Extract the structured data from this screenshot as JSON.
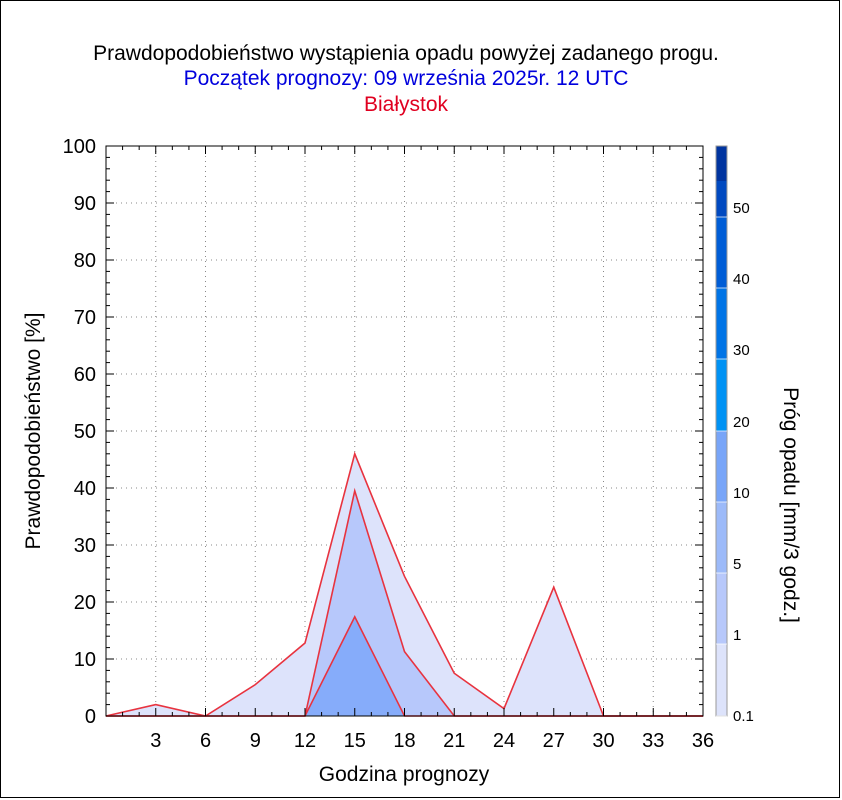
{
  "header": {
    "title": "Prawdopodobieństwo wystąpienia opadu powyżej zadanego progu.",
    "subtitle": "Początek prognozy: 09 września 2025r. 12 UTC",
    "location": "Białystok"
  },
  "chart_data": {
    "type": "area",
    "title": "Prawdopodobieństwo wystąpienia opadu powyżej zadanego progu.",
    "xlabel": "Godzina prognozy",
    "ylabel": "Prawdopodobieństwo [%]",
    "xlim": [
      0,
      36
    ],
    "ylim": [
      0,
      100
    ],
    "x_ticks": [
      3,
      6,
      9,
      12,
      15,
      18,
      21,
      24,
      27,
      30,
      33,
      36
    ],
    "y_ticks": [
      0,
      10,
      20,
      30,
      40,
      50,
      60,
      70,
      80,
      90,
      100
    ],
    "x": [
      0,
      3,
      6,
      9,
      12,
      15,
      18,
      21,
      24,
      27,
      30,
      33,
      36
    ],
    "series": [
      {
        "name": "0.1",
        "color": "#dde3fb",
        "values": [
          0,
          2,
          0,
          5.5,
          12.8,
          46,
          24.5,
          7.5,
          1.3,
          22.6,
          0,
          0,
          0
        ]
      },
      {
        "name": "1",
        "color": "#b7c8fb",
        "values": [
          0,
          0,
          0,
          0,
          0,
          39.5,
          11.3,
          0,
          0,
          0,
          0,
          0,
          0
        ]
      },
      {
        "name": "5",
        "color": "#86acfa",
        "values": [
          0,
          0,
          0,
          0,
          0,
          17.4,
          0,
          0,
          0,
          0,
          0,
          0,
          0
        ]
      }
    ],
    "colorbar": {
      "title": "Próg opadu [mm/3 godz.]",
      "labels": [
        "0.1",
        "1",
        "5",
        "10",
        "20",
        "30",
        "40",
        "50"
      ],
      "colors": [
        "#dde3fb",
        "#b7c8fb",
        "#9cbaf9",
        "#78a5f8",
        "#0092f4",
        "#0074e6",
        "#005dd6",
        "#0049c0",
        "#00349f"
      ]
    },
    "line_color": "#e8333f",
    "grid": true
  }
}
